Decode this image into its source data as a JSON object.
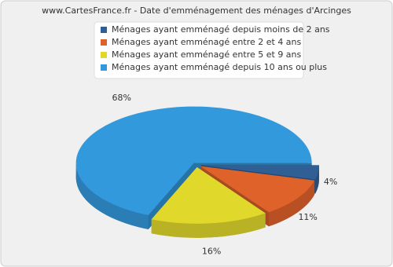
{
  "chart_data": {
    "type": "pie",
    "title": "www.CartesFrance.fr - Date d'emménagement des ménages d'Arcinges",
    "categories": [
      "Ménages ayant emménagé depuis moins de 2 ans",
      "Ménages ayant emménagé entre 2 et 4 ans",
      "Ménages ayant emménagé entre 5 et 9 ans",
      "Ménages ayant emménagé depuis 10 ans ou plus"
    ],
    "values": [
      4,
      11,
      16,
      68
    ],
    "value_labels": [
      "4%",
      "11%",
      "16%",
      "68%"
    ],
    "colors": [
      "#2f5f95",
      "#e0622b",
      "#e0d92c",
      "#3399dd"
    ]
  }
}
